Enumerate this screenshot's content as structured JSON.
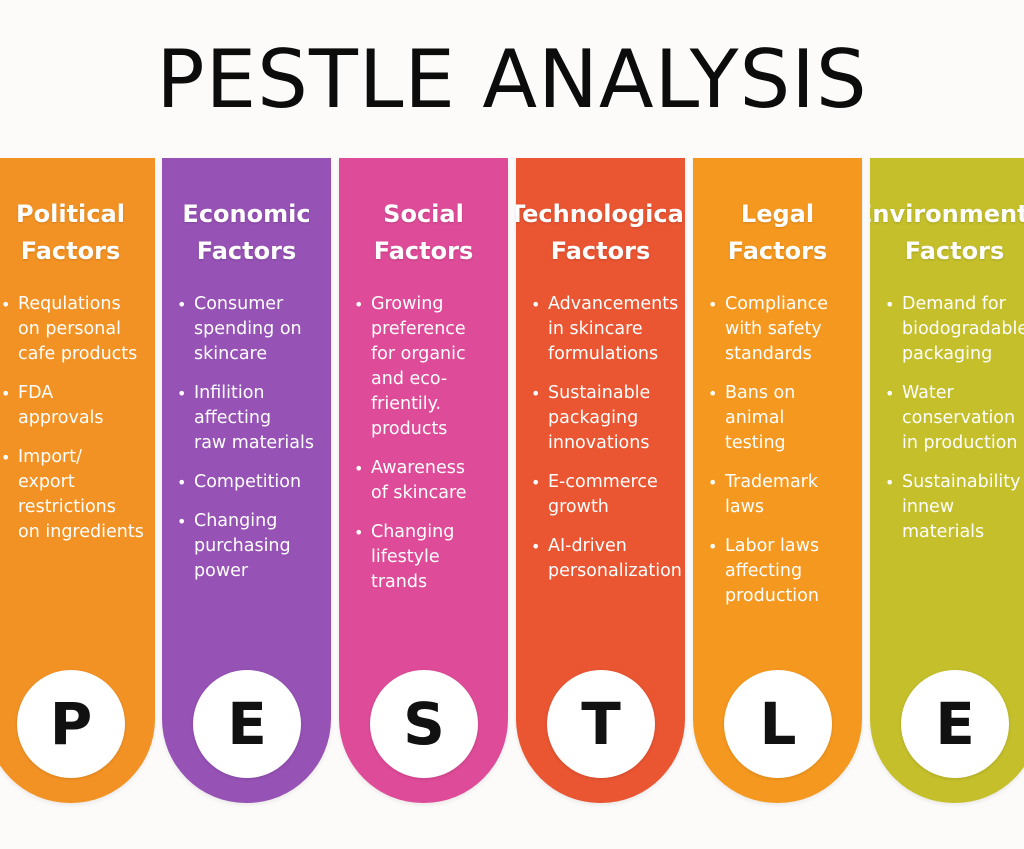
{
  "title": "PESTLE ANALYSIS",
  "columns": [
    {
      "heading_line1": "Political",
      "heading_line2": "Factors",
      "letter": "P",
      "color": "#f39224",
      "bullets": [
        "Requlations\non personal\ncafe products",
        "FDA\napprovals",
        "Import/\nexport\nrestrictions\non ingredients"
      ]
    },
    {
      "heading_line1": "Economic",
      "heading_line2": "Factors",
      "letter": "E",
      "color": "#9652b5",
      "bullets": [
        "Consumer\nspending on\nskincare",
        "Infilition\naffecting\nraw materials",
        "Competition",
        "Changing\npurchasing\npower"
      ]
    },
    {
      "heading_line1": "Social",
      "heading_line2": "Factors",
      "letter": "S",
      "color": "#de4b98",
      "bullets": [
        "Growing\npreference\nfor organic\nand eco-\nfrientily.\nproducts",
        "Awareness\nof skincare",
        "Changing\nlifestyle\ntrands"
      ]
    },
    {
      "heading_line1": "Technological",
      "heading_line2": "Factors",
      "letter": "T",
      "color": "#ea5532",
      "bullets": [
        "Advancements\nin skincare\nformulations",
        "Sustainable\npackaging\ninnovations",
        "E-commerce\ngrowth",
        "AI-driven\npersonalization"
      ]
    },
    {
      "heading_line1": "Legal",
      "heading_line2": "Factors",
      "letter": "L",
      "color": "#f5981f",
      "bullets": [
        "Compliance\nwith safety\nstandards",
        "Bans on\nanimal\ntesting",
        "Trademark\nlaws",
        "Labor laws\naffecting\nproduction"
      ]
    },
    {
      "heading_line1": "Environmental",
      "heading_line2": "Factors",
      "letter": "E",
      "color": "#c4bf2b",
      "bullets": [
        "Demand for\nbiodogradable\npackaging",
        "Water\nconservation\nin production",
        "Sustainability\ninnew\nmaterials"
      ]
    }
  ]
}
